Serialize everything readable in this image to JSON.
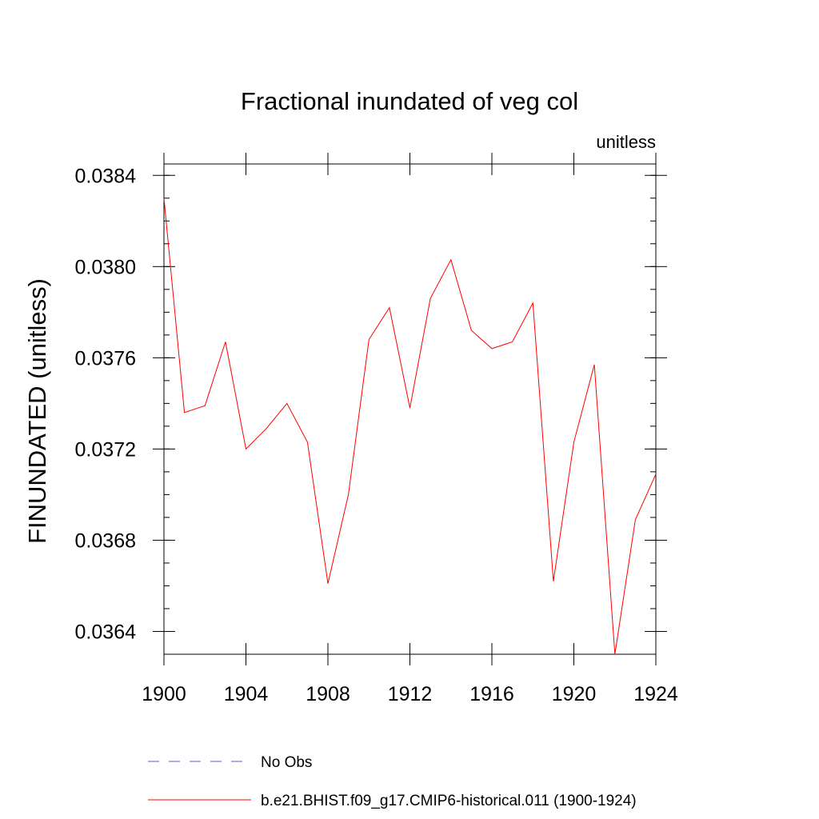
{
  "chart_data": {
    "type": "line",
    "title": "Fractional inundated of veg col",
    "units_label": "unitless",
    "ylabel": "FINUNDATED  (unitless)",
    "xlabel": "",
    "xlim": [
      1900,
      1924
    ],
    "ylim": [
      0.0363,
      0.03845
    ],
    "x_ticks": [
      1900,
      1904,
      1908,
      1912,
      1916,
      1920,
      1924
    ],
    "x_tick_labels": [
      "1900",
      "1904",
      "1908",
      "1912",
      "1916",
      "1920",
      "1924"
    ],
    "y_ticks": [
      0.0364,
      0.0368,
      0.0372,
      0.0376,
      0.038,
      0.0384
    ],
    "y_tick_labels": [
      "0.0364",
      "0.0368",
      "0.0372",
      "0.0376",
      "0.0380",
      "0.0384"
    ],
    "grid": false,
    "legend_position": "bottom",
    "series": [
      {
        "name": "No Obs",
        "color": "#5b5bd6",
        "dash": "dashed",
        "x": [],
        "y": []
      },
      {
        "name": "b.e21.BHIST.f09_g17.CMIP6-historical.011 (1900-1924)",
        "color": "#ff0000",
        "dash": "solid",
        "x": [
          1900,
          1901,
          1902,
          1903,
          1904,
          1905,
          1906,
          1907,
          1908,
          1909,
          1910,
          1911,
          1912,
          1913,
          1914,
          1915,
          1916,
          1917,
          1918,
          1919,
          1920,
          1921,
          1922,
          1923,
          1924
        ],
        "y": [
          0.0383,
          0.03736,
          0.03739,
          0.03767,
          0.0372,
          0.03729,
          0.0374,
          0.03723,
          0.03661,
          0.037,
          0.03768,
          0.03782,
          0.03738,
          0.03786,
          0.03803,
          0.03772,
          0.03764,
          0.03767,
          0.03784,
          0.03662,
          0.03723,
          0.03757,
          0.0363,
          0.03689,
          0.03709
        ]
      }
    ]
  }
}
